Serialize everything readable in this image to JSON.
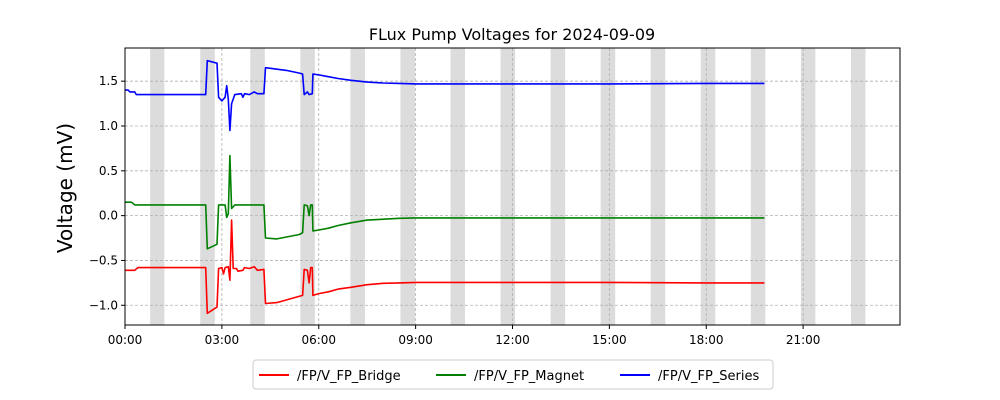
{
  "chart_data": {
    "type": "line",
    "title": "FLux Pump Voltages for 2024-09-09",
    "xlabel": "",
    "ylabel": "Voltage (mV)",
    "xlim": [
      "00:00",
      "24:00"
    ],
    "ylim": [
      -1.22,
      1.87
    ],
    "x_ticks": [
      "00:00",
      "03:00",
      "06:00",
      "09:00",
      "12:00",
      "15:00",
      "18:00",
      "21:00"
    ],
    "y_ticks": [
      "−1.0",
      "−0.5",
      "0.0",
      "0.5",
      "1.0",
      "1.5"
    ],
    "y_tick_values": [
      -1.0,
      -0.5,
      0.0,
      0.5,
      1.0,
      1.5
    ],
    "grid": "dashed",
    "legend_position": "bottom-center",
    "shaded_intervals_hours": [
      [
        0.78,
        1.22
      ],
      [
        2.33,
        2.78
      ],
      [
        3.88,
        4.33
      ],
      [
        5.43,
        5.88
      ],
      [
        6.98,
        7.43
      ],
      [
        8.53,
        8.98
      ],
      [
        10.08,
        10.53
      ],
      [
        11.63,
        12.08
      ],
      [
        13.18,
        13.63
      ],
      [
        14.73,
        15.18
      ],
      [
        16.28,
        16.73
      ],
      [
        17.83,
        18.28
      ],
      [
        19.38,
        19.83
      ],
      [
        20.93,
        21.38
      ],
      [
        22.48,
        22.93
      ]
    ],
    "series": [
      {
        "name": "/FP/V_FP_Bridge",
        "color": "#ff0000",
        "points": [
          [
            0,
            -0.61
          ],
          [
            0.3,
            -0.61
          ],
          [
            0.4,
            -0.58
          ],
          [
            2.5,
            -0.58
          ],
          [
            2.55,
            -1.09
          ],
          [
            2.85,
            -1.02
          ],
          [
            2.9,
            -0.59
          ],
          [
            3.0,
            -0.58
          ],
          [
            3.05,
            -0.65
          ],
          [
            3.1,
            -0.58
          ],
          [
            3.2,
            -0.57
          ],
          [
            3.25,
            -0.72
          ],
          [
            3.3,
            -0.05
          ],
          [
            3.35,
            -0.59
          ],
          [
            3.45,
            -0.59
          ],
          [
            3.5,
            -0.62
          ],
          [
            3.65,
            -0.61
          ],
          [
            3.7,
            -0.58
          ],
          [
            3.85,
            -0.59
          ],
          [
            4.0,
            -0.57
          ],
          [
            4.1,
            -0.61
          ],
          [
            4.3,
            -0.6
          ],
          [
            4.35,
            -0.98
          ],
          [
            4.7,
            -0.97
          ],
          [
            5.5,
            -0.89
          ],
          [
            5.55,
            -0.6
          ],
          [
            5.65,
            -0.61
          ],
          [
            5.7,
            -0.75
          ],
          [
            5.75,
            -0.58
          ],
          [
            5.8,
            -0.58
          ],
          [
            5.82,
            -0.89
          ],
          [
            6.0,
            -0.87
          ],
          [
            6.3,
            -0.85
          ],
          [
            6.6,
            -0.82
          ],
          [
            7.0,
            -0.8
          ],
          [
            7.5,
            -0.77
          ],
          [
            8.0,
            -0.755
          ],
          [
            8.5,
            -0.75
          ],
          [
            9.0,
            -0.745
          ],
          [
            10.0,
            -0.745
          ],
          [
            12.0,
            -0.745
          ],
          [
            15.0,
            -0.745
          ],
          [
            18.0,
            -0.75
          ],
          [
            19.8,
            -0.75
          ]
        ]
      },
      {
        "name": "/FP/V_FP_Magnet",
        "color": "#008000",
        "points": [
          [
            0,
            0.15
          ],
          [
            0.2,
            0.15
          ],
          [
            0.3,
            0.12
          ],
          [
            2.5,
            0.12
          ],
          [
            2.55,
            -0.37
          ],
          [
            2.85,
            -0.32
          ],
          [
            2.9,
            0.12
          ],
          [
            3.1,
            0.12
          ],
          [
            3.15,
            -0.02
          ],
          [
            3.2,
            0.02
          ],
          [
            3.25,
            0.67
          ],
          [
            3.3,
            0.08
          ],
          [
            3.4,
            0.12
          ],
          [
            4.3,
            0.12
          ],
          [
            4.35,
            -0.25
          ],
          [
            4.7,
            -0.26
          ],
          [
            5.4,
            -0.21
          ],
          [
            5.5,
            -0.19
          ],
          [
            5.55,
            0.12
          ],
          [
            5.65,
            0.11
          ],
          [
            5.7,
            0.0
          ],
          [
            5.75,
            0.12
          ],
          [
            5.8,
            0.12
          ],
          [
            5.82,
            -0.17
          ],
          [
            6.0,
            -0.16
          ],
          [
            6.3,
            -0.14
          ],
          [
            6.6,
            -0.11
          ],
          [
            7.0,
            -0.08
          ],
          [
            7.5,
            -0.05
          ],
          [
            8.0,
            -0.04
          ],
          [
            8.5,
            -0.03
          ],
          [
            9.0,
            -0.025
          ],
          [
            10.0,
            -0.025
          ],
          [
            12.0,
            -0.025
          ],
          [
            15.0,
            -0.025
          ],
          [
            18.0,
            -0.025
          ],
          [
            19.8,
            -0.025
          ]
        ]
      },
      {
        "name": "/FP/V_FP_Series",
        "color": "#0000ff",
        "points": [
          [
            0,
            1.4
          ],
          [
            0.1,
            1.4
          ],
          [
            0.15,
            1.38
          ],
          [
            0.3,
            1.38
          ],
          [
            0.35,
            1.35
          ],
          [
            2.5,
            1.35
          ],
          [
            2.55,
            1.73
          ],
          [
            2.85,
            1.7
          ],
          [
            2.9,
            1.32
          ],
          [
            3.0,
            1.28
          ],
          [
            3.1,
            1.32
          ],
          [
            3.15,
            1.45
          ],
          [
            3.2,
            1.3
          ],
          [
            3.25,
            0.95
          ],
          [
            3.3,
            1.25
          ],
          [
            3.4,
            1.35
          ],
          [
            3.6,
            1.36
          ],
          [
            3.65,
            1.32
          ],
          [
            3.7,
            1.36
          ],
          [
            3.85,
            1.35
          ],
          [
            4.0,
            1.38
          ],
          [
            4.1,
            1.36
          ],
          [
            4.3,
            1.36
          ],
          [
            4.35,
            1.65
          ],
          [
            5.0,
            1.62
          ],
          [
            5.4,
            1.59
          ],
          [
            5.5,
            1.58
          ],
          [
            5.55,
            1.35
          ],
          [
            5.65,
            1.38
          ],
          [
            5.7,
            1.35
          ],
          [
            5.8,
            1.36
          ],
          [
            5.82,
            1.58
          ],
          [
            6.0,
            1.57
          ],
          [
            6.3,
            1.55
          ],
          [
            6.6,
            1.53
          ],
          [
            7.0,
            1.51
          ],
          [
            7.5,
            1.49
          ],
          [
            8.0,
            1.48
          ],
          [
            8.5,
            1.475
          ],
          [
            9.0,
            1.47
          ],
          [
            10.0,
            1.47
          ],
          [
            12.0,
            1.47
          ],
          [
            15.0,
            1.47
          ],
          [
            18.0,
            1.475
          ],
          [
            19.8,
            1.475
          ]
        ]
      }
    ]
  }
}
